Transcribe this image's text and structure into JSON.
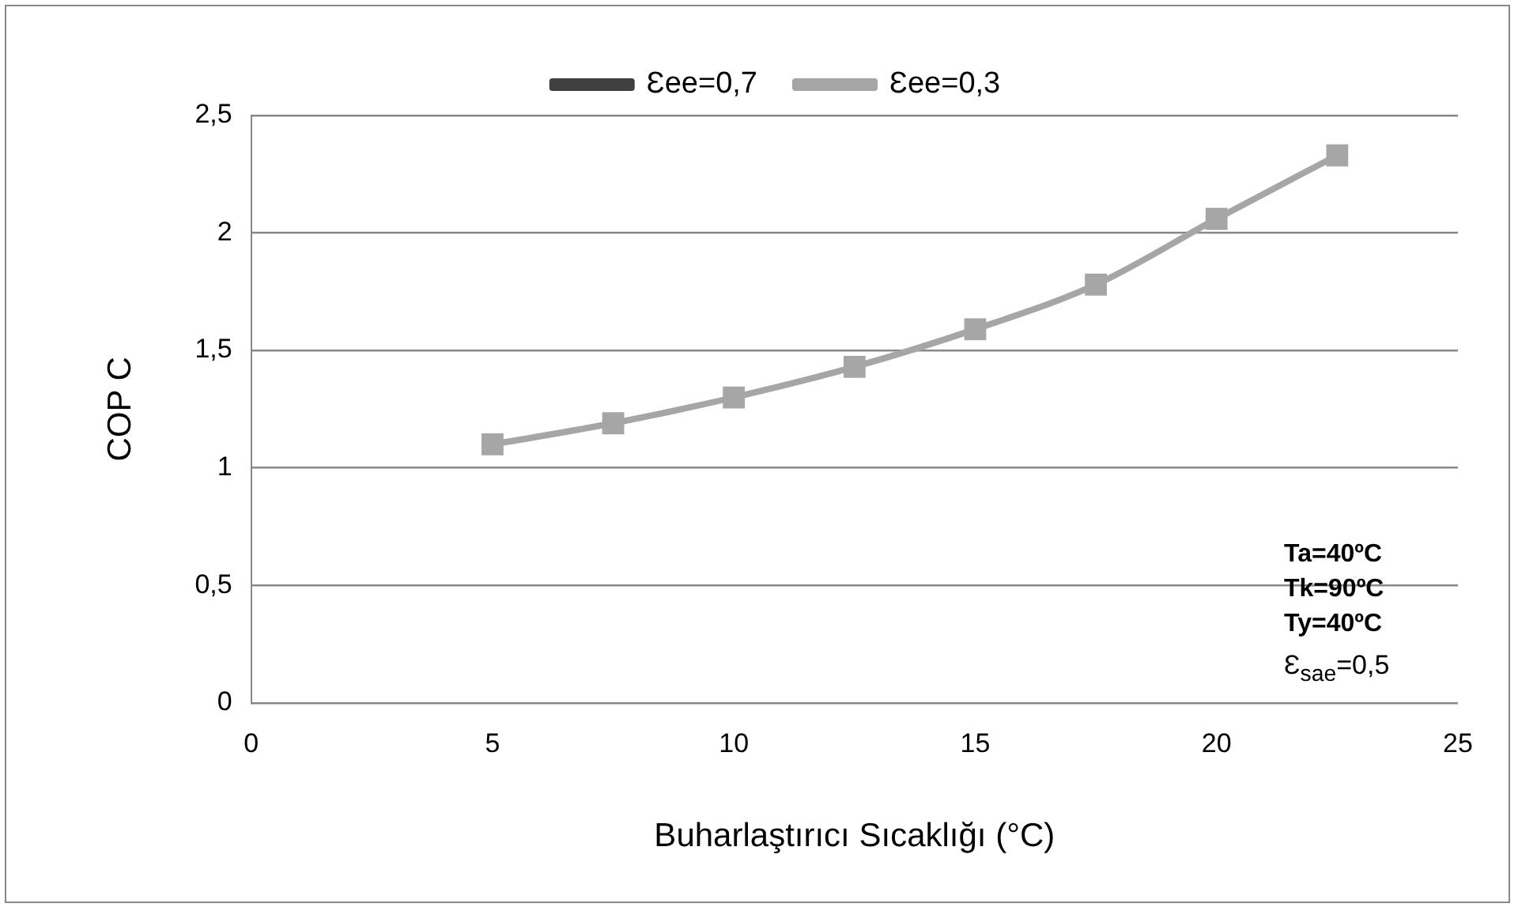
{
  "chart_data": {
    "type": "line",
    "xlabel": "Buharlaştırıcı Sıcaklığı (°C)",
    "ylabel": "COP C",
    "x": [
      5,
      7.5,
      10,
      12.5,
      15,
      17.5,
      20,
      22.5
    ],
    "series": [
      {
        "name": "Ɛee=0,7",
        "color": "#404040",
        "marker": "diamond",
        "values": [
          null,
          null,
          null,
          null,
          null,
          null,
          null,
          null
        ]
      },
      {
        "name": "Ɛee=0,3",
        "color": "#a6a6a6",
        "marker": "square",
        "values": [
          1.1,
          1.19,
          1.3,
          1.43,
          1.59,
          1.78,
          2.06,
          2.33
        ]
      }
    ],
    "xlim": [
      0,
      25
    ],
    "xticks": [
      0,
      5,
      10,
      15,
      20,
      25
    ],
    "ylim": [
      0,
      2.5
    ],
    "yticks": [
      0,
      {
        "value": 0.5,
        "label": "0,5"
      },
      1,
      {
        "value": 1.5,
        "label": "1,5"
      },
      2,
      {
        "value": 2.5,
        "label": "2,5"
      }
    ],
    "grid": "y",
    "legend": "top",
    "line_style": "solid",
    "annotations": [
      "Ta=40ºC",
      "Tk=90ºC",
      "Ty=40ºC",
      "Ɛ$_{sae}$=0,5"
    ]
  }
}
